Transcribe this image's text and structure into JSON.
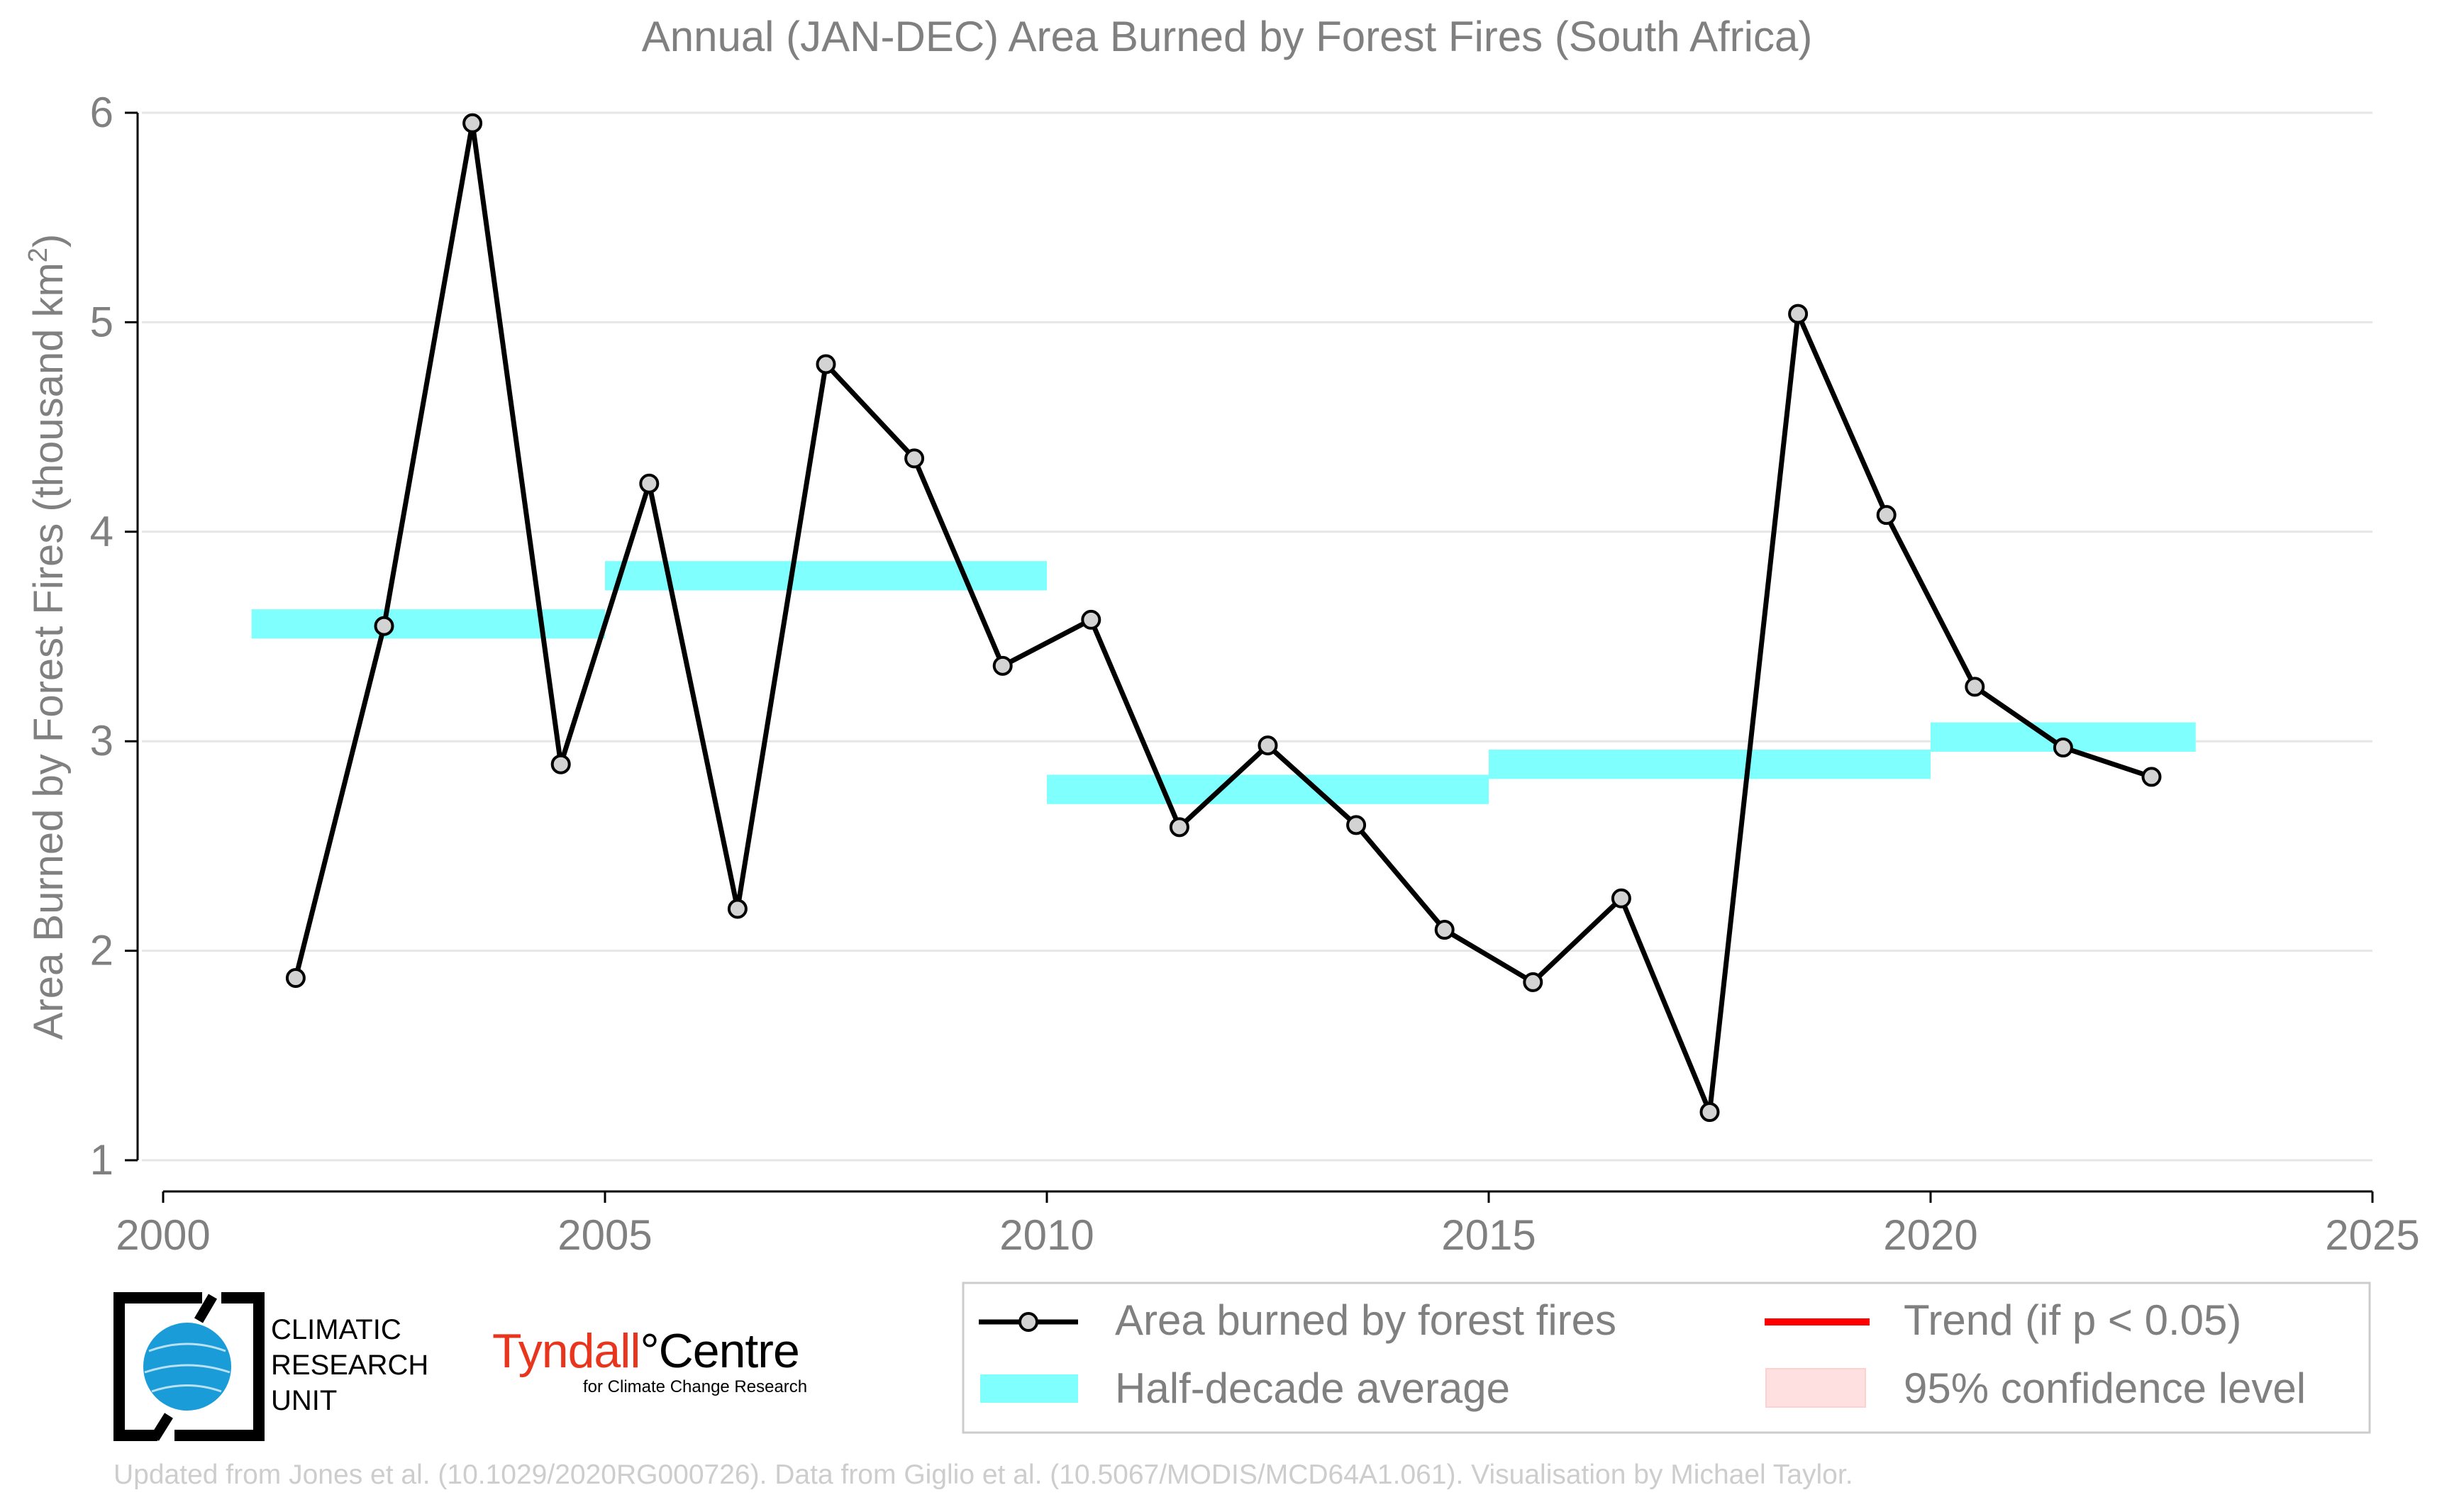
{
  "chart_data": {
    "type": "line",
    "title": "Annual (JAN-DEC) Area Burned by Forest Fires (South Africa)",
    "ylabel_main": "Area Burned by Forest Fires (thousand km",
    "ylabel_sup": "2",
    "ylabel_close": ")",
    "xlim": [
      2000,
      2025
    ],
    "ylim": [
      1,
      6
    ],
    "xticks": [
      "2000",
      "2005",
      "2010",
      "2015",
      "2020",
      "2025"
    ],
    "xtick_values": [
      2000,
      2005,
      2010,
      2015,
      2020,
      2025
    ],
    "yticks": [
      "1",
      "2",
      "3",
      "4",
      "5",
      "6"
    ],
    "ytick_values": [
      1,
      2,
      3,
      4,
      5,
      6
    ],
    "grid": "horizontal",
    "series": [
      {
        "name": "Area burned by forest fires",
        "color": "#000000",
        "marker_color": "#d3d3d3",
        "x": [
          2001.5,
          2002.5,
          2003.5,
          2004.5,
          2005.5,
          2006.5,
          2007.5,
          2008.5,
          2009.5,
          2010.5,
          2011.5,
          2012.5,
          2013.5,
          2014.5,
          2015.5,
          2016.5,
          2017.5,
          2018.5,
          2019.5,
          2020.5,
          2021.5,
          2022.5
        ],
        "y": [
          1.87,
          3.55,
          5.95,
          2.89,
          4.23,
          2.2,
          4.8,
          4.35,
          3.36,
          3.58,
          2.59,
          2.98,
          2.6,
          2.1,
          1.85,
          2.25,
          1.23,
          5.04,
          4.08,
          3.26,
          2.97,
          2.83
        ]
      }
    ],
    "half_decade_average": {
      "name": "Half-decade average",
      "color": "#80ffff",
      "segments": [
        {
          "x0": 2001,
          "x1": 2005,
          "y0": 3.49,
          "y1": 3.63
        },
        {
          "x0": 2005,
          "x1": 2010,
          "y0": 3.72,
          "y1": 3.86
        },
        {
          "x0": 2010,
          "x1": 2015,
          "y0": 2.7,
          "y1": 2.84
        },
        {
          "x0": 2015,
          "x1": 2020,
          "y0": 2.82,
          "y1": 2.96
        },
        {
          "x0": 2020,
          "x1": 2023,
          "y0": 2.95,
          "y1": 3.09
        }
      ]
    },
    "legend": {
      "placement": "bottom-right",
      "entries": [
        {
          "label": "Area burned by forest fires",
          "kind": "line-marker",
          "color": "#000000"
        },
        {
          "label": "Trend (if p < 0.05)",
          "kind": "line",
          "color": "#ff0000"
        },
        {
          "label": "Half-decade average",
          "kind": "patch",
          "color": "#80ffff"
        },
        {
          "label": "95% confidence level",
          "kind": "patch",
          "color": "#ffe0e0"
        }
      ]
    }
  },
  "logos": {
    "cru_lines": [
      "CLIMATIC",
      "RESEARCH",
      "UNIT"
    ],
    "tyndall_name": "Tyndall",
    "tyndall_degree": "°",
    "tyndall_centre": "Centre",
    "tyndall_sub": "for Climate Change Research"
  },
  "footer": "Updated from Jones et al. (10.1029/2020RG000726). Data from Giglio et al. (10.5067/MODIS/MCD64A1.061). Visualisation by Michael Taylor."
}
